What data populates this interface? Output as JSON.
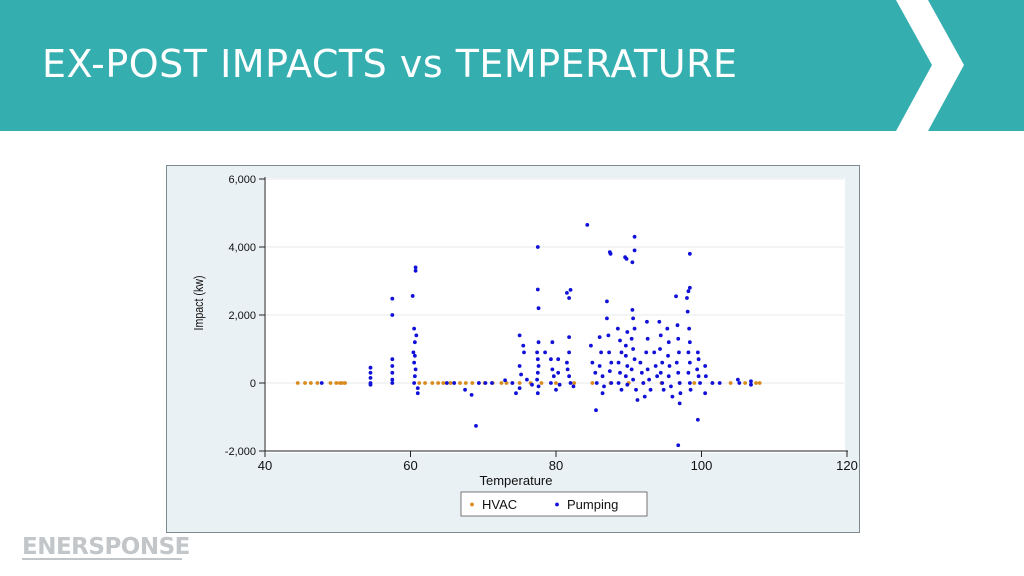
{
  "slide": {
    "title": "EX-POST IMPACTS vs TEMPERATURE",
    "logo_text": "ENERSPONSE"
  },
  "colors": {
    "header_bg": "#35aeb0",
    "hvac": "#d98a1d",
    "pumping": "#1010d8",
    "plot_bg": "#ffffff",
    "frame_bg": "#e9f1f4"
  },
  "chart_data": {
    "type": "scatter",
    "xlabel": "Temperature",
    "ylabel": "Impact (kw)",
    "xlim": [
      40,
      120
    ],
    "ylim": [
      -2000,
      6000
    ],
    "x_ticks": [
      40,
      60,
      80,
      100,
      120
    ],
    "y_ticks": [
      -2000,
      0,
      2000,
      4000,
      6000
    ],
    "y_tick_labels": [
      "-2,000",
      "0",
      "2,000",
      "4,000",
      "6,000"
    ],
    "grid": true,
    "legend_position": "bottom",
    "series": [
      {
        "name": "HVAC",
        "color": "#d98a1d",
        "points": [
          [
            44.5,
            0
          ],
          [
            45.5,
            0
          ],
          [
            46.3,
            0
          ],
          [
            47.2,
            0
          ],
          [
            49.0,
            0
          ],
          [
            49.8,
            0
          ],
          [
            50.3,
            0
          ],
          [
            50.6,
            0
          ],
          [
            51.0,
            0
          ],
          [
            61.2,
            0
          ],
          [
            62.0,
            0
          ],
          [
            63.0,
            0
          ],
          [
            63.8,
            0
          ],
          [
            64.5,
            0
          ],
          [
            65.0,
            0
          ],
          [
            65.5,
            0
          ],
          [
            66.0,
            0
          ],
          [
            66.8,
            0
          ],
          [
            67.6,
            0
          ],
          [
            68.5,
            0
          ],
          [
            69.4,
            0
          ],
          [
            70.2,
            0
          ],
          [
            71.3,
            0
          ],
          [
            72.5,
            0
          ],
          [
            73.2,
            0
          ],
          [
            74.0,
            0
          ],
          [
            75.0,
            0
          ],
          [
            76.5,
            0
          ],
          [
            78.0,
            0
          ],
          [
            80.0,
            0
          ],
          [
            82.5,
            0
          ],
          [
            85.0,
            0
          ],
          [
            87.5,
            0
          ],
          [
            90.0,
            0
          ],
          [
            92.0,
            0
          ],
          [
            94.5,
            0
          ],
          [
            97.0,
            0
          ],
          [
            99.0,
            0
          ],
          [
            101.5,
            0
          ],
          [
            104.0,
            0
          ],
          [
            106.0,
            0
          ],
          [
            107.5,
            0
          ],
          [
            108.0,
            0
          ]
        ]
      },
      {
        "name": "Pumping",
        "color": "#1010d8",
        "points": [
          [
            47.8,
            0
          ],
          [
            54.5,
            450
          ],
          [
            54.5,
            300
          ],
          [
            54.5,
            150
          ],
          [
            54.5,
            0
          ],
          [
            54.5,
            -50
          ],
          [
            57.5,
            2480
          ],
          [
            57.5,
            2000
          ],
          [
            57.5,
            700
          ],
          [
            57.5,
            500
          ],
          [
            57.5,
            300
          ],
          [
            57.5,
            100
          ],
          [
            57.5,
            0
          ],
          [
            60.3,
            2560
          ],
          [
            60.7,
            3400
          ],
          [
            60.7,
            3300
          ],
          [
            60.5,
            1600
          ],
          [
            60.8,
            1400
          ],
          [
            60.6,
            1200
          ],
          [
            60.4,
            900
          ],
          [
            60.6,
            800
          ],
          [
            60.5,
            600
          ],
          [
            60.7,
            400
          ],
          [
            60.6,
            200
          ],
          [
            60.5,
            0
          ],
          [
            61.0,
            -300
          ],
          [
            61.0,
            -150
          ],
          [
            65.0,
            0
          ],
          [
            66.0,
            0
          ],
          [
            67.5,
            -200
          ],
          [
            68.4,
            -350
          ],
          [
            69.0,
            -1260
          ],
          [
            69.4,
            0
          ],
          [
            70.3,
            0
          ],
          [
            71.2,
            0
          ],
          [
            73.0,
            80
          ],
          [
            74.0,
            0
          ],
          [
            74.5,
            -300
          ],
          [
            75.0,
            1400
          ],
          [
            75.5,
            1100
          ],
          [
            75.6,
            900
          ],
          [
            75.0,
            500
          ],
          [
            75.2,
            250
          ],
          [
            75.0,
            -150
          ],
          [
            76.0,
            100
          ],
          [
            76.7,
            -50
          ],
          [
            77.5,
            4000
          ],
          [
            77.5,
            2750
          ],
          [
            77.6,
            2200
          ],
          [
            77.6,
            1200
          ],
          [
            77.4,
            900
          ],
          [
            77.5,
            700
          ],
          [
            77.6,
            500
          ],
          [
            77.5,
            300
          ],
          [
            77.4,
            100
          ],
          [
            77.6,
            -100
          ],
          [
            77.5,
            -300
          ],
          [
            78.5,
            900
          ],
          [
            79.5,
            1200
          ],
          [
            79.3,
            700
          ],
          [
            79.5,
            400
          ],
          [
            79.7,
            200
          ],
          [
            79.3,
            0
          ],
          [
            80.0,
            -200
          ],
          [
            80.3,
            700
          ],
          [
            80.3,
            300
          ],
          [
            80.5,
            -50
          ],
          [
            81.5,
            2650
          ],
          [
            81.8,
            2500
          ],
          [
            82.0,
            2740
          ],
          [
            81.8,
            1350
          ],
          [
            81.8,
            900
          ],
          [
            81.5,
            600
          ],
          [
            81.6,
            400
          ],
          [
            81.8,
            200
          ],
          [
            82.0,
            0
          ],
          [
            82.4,
            -100
          ],
          [
            84.3,
            4650
          ],
          [
            84.8,
            1100
          ],
          [
            85.0,
            600
          ],
          [
            85.4,
            300
          ],
          [
            85.6,
            0
          ],
          [
            85.5,
            -800
          ],
          [
            86.0,
            1350
          ],
          [
            86.2,
            900
          ],
          [
            86.0,
            500
          ],
          [
            86.4,
            200
          ],
          [
            86.6,
            -100
          ],
          [
            86.4,
            -300
          ],
          [
            87.0,
            2400
          ],
          [
            87.0,
            1900
          ],
          [
            87.2,
            1400
          ],
          [
            87.3,
            900
          ],
          [
            87.4,
            3850
          ],
          [
            87.5,
            3800
          ],
          [
            87.6,
            600
          ],
          [
            87.4,
            350
          ],
          [
            87.6,
            0
          ],
          [
            88.5,
            1600
          ],
          [
            88.8,
            1250
          ],
          [
            89.0,
            900
          ],
          [
            88.6,
            600
          ],
          [
            88.8,
            300
          ],
          [
            88.6,
            0
          ],
          [
            89.0,
            -200
          ],
          [
            89.5,
            3700
          ],
          [
            89.7,
            3650
          ],
          [
            89.8,
            1500
          ],
          [
            89.6,
            1100
          ],
          [
            89.6,
            800
          ],
          [
            89.8,
            500
          ],
          [
            89.6,
            200
          ],
          [
            89.8,
            -50
          ],
          [
            90.5,
            3550
          ],
          [
            90.8,
            4300
          ],
          [
            90.8,
            3900
          ],
          [
            90.5,
            2150
          ],
          [
            90.6,
            1900
          ],
          [
            90.8,
            1600
          ],
          [
            90.4,
            1300
          ],
          [
            90.6,
            1000
          ],
          [
            90.8,
            700
          ],
          [
            90.4,
            400
          ],
          [
            90.6,
            100
          ],
          [
            91.0,
            -200
          ],
          [
            91.2,
            -500
          ],
          [
            91.6,
            600
          ],
          [
            91.8,
            300
          ],
          [
            92.0,
            0
          ],
          [
            92.2,
            -400
          ],
          [
            92.5,
            1800
          ],
          [
            92.6,
            1300
          ],
          [
            92.4,
            900
          ],
          [
            92.6,
            400
          ],
          [
            92.8,
            100
          ],
          [
            93.0,
            -200
          ],
          [
            93.5,
            900
          ],
          [
            93.7,
            500
          ],
          [
            93.9,
            200
          ],
          [
            94.2,
            1800
          ],
          [
            94.4,
            1400
          ],
          [
            94.3,
            1000
          ],
          [
            94.6,
            600
          ],
          [
            94.4,
            300
          ],
          [
            94.6,
            0
          ],
          [
            94.8,
            -200
          ],
          [
            95.3,
            1600
          ],
          [
            95.5,
            1200
          ],
          [
            95.4,
            800
          ],
          [
            95.6,
            500
          ],
          [
            95.5,
            200
          ],
          [
            95.8,
            -100
          ],
          [
            96.0,
            -400
          ],
          [
            96.5,
            2550
          ],
          [
            96.7,
            1700
          ],
          [
            96.8,
            1300
          ],
          [
            96.9,
            900
          ],
          [
            96.6,
            600
          ],
          [
            96.8,
            300
          ],
          [
            97.0,
            0
          ],
          [
            97.1,
            -300
          ],
          [
            97.0,
            -600
          ],
          [
            96.8,
            -1830
          ],
          [
            98.2,
            2700
          ],
          [
            98.4,
            2800
          ],
          [
            98.4,
            3800
          ],
          [
            98.0,
            2500
          ],
          [
            98.1,
            2100
          ],
          [
            98.3,
            1600
          ],
          [
            98.4,
            1200
          ],
          [
            98.2,
            900
          ],
          [
            98.4,
            600
          ],
          [
            98.2,
            300
          ],
          [
            98.4,
            0
          ],
          [
            98.5,
            -200
          ],
          [
            99.5,
            900
          ],
          [
            99.6,
            700
          ],
          [
            99.4,
            400
          ],
          [
            99.6,
            200
          ],
          [
            99.8,
            0
          ],
          [
            99.5,
            -1080
          ],
          [
            100.5,
            500
          ],
          [
            100.6,
            200
          ],
          [
            100.5,
            -300
          ],
          [
            101.5,
            0
          ],
          [
            102.5,
            0
          ],
          [
            105.0,
            100
          ],
          [
            105.2,
            0
          ],
          [
            106.8,
            50
          ],
          [
            106.8,
            -50
          ]
        ]
      }
    ]
  }
}
